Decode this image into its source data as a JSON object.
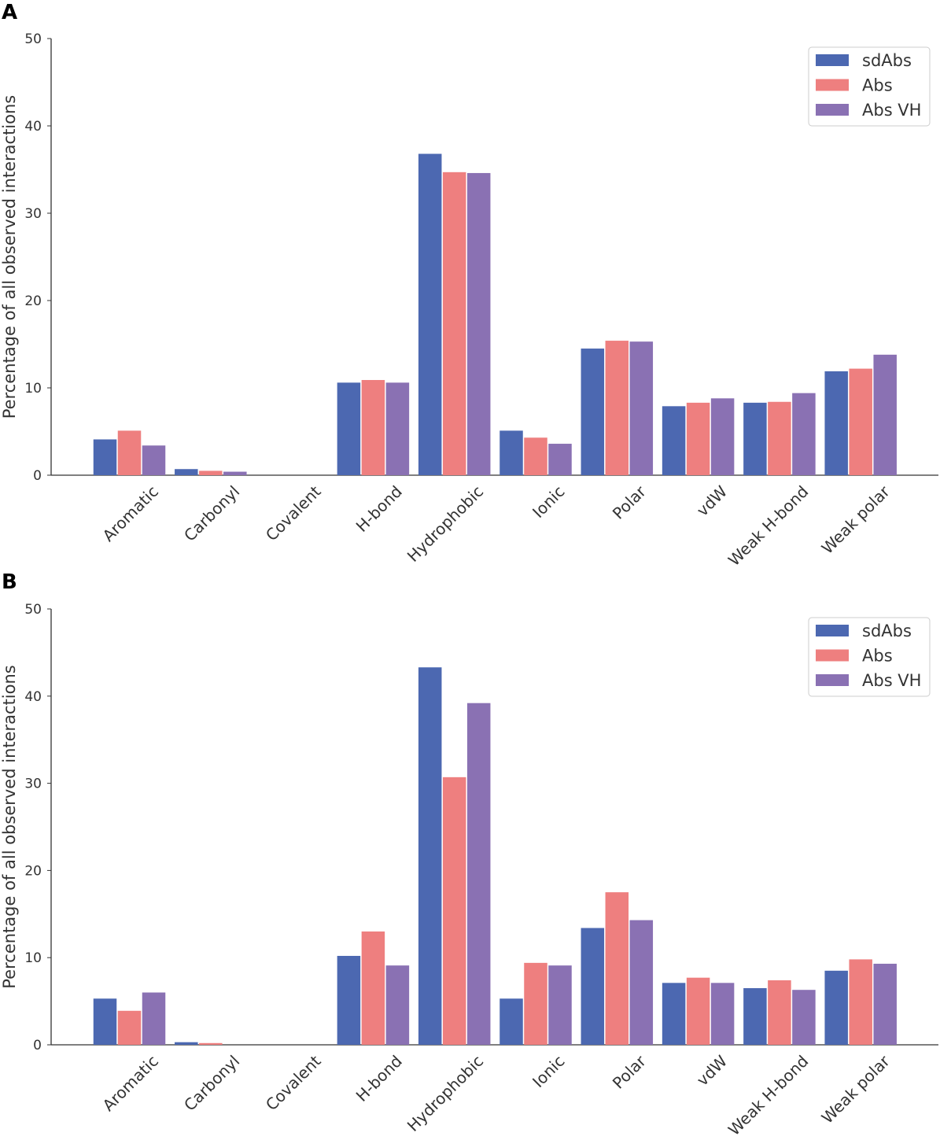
{
  "chart_data": [
    {
      "panel": "A",
      "type": "bar",
      "title": "",
      "xlabel": "",
      "ylabel": "Percentage of all observed interactions",
      "ylim": [
        0,
        50
      ],
      "yticks": [
        0,
        10,
        20,
        30,
        40,
        50
      ],
      "grid": false,
      "legend": "top-right",
      "categories": [
        "Aromatic",
        "Carbonyl",
        "Covalent",
        "H-bond",
        "Hydrophobic",
        "Ionic",
        "Polar",
        "vdW",
        "Weak H-bond",
        "Weak polar"
      ],
      "series": [
        {
          "name": "sdAbs",
          "color": "#4c68b1",
          "values": [
            4.1,
            0.7,
            0.0,
            10.6,
            36.8,
            5.1,
            14.5,
            7.9,
            8.3,
            11.9
          ]
        },
        {
          "name": "Abs",
          "color": "#ee7f7f",
          "values": [
            5.1,
            0.5,
            0.0,
            10.9,
            34.7,
            4.3,
            15.4,
            8.3,
            8.4,
            12.2
          ]
        },
        {
          "name": "Abs VH",
          "color": "#8a71b3",
          "values": [
            3.4,
            0.4,
            0.0,
            10.6,
            34.6,
            3.6,
            15.3,
            8.8,
            9.4,
            13.8
          ]
        }
      ]
    },
    {
      "panel": "B",
      "type": "bar",
      "title": "",
      "xlabel": "",
      "ylabel": "Percentage of all observed interactions",
      "ylim": [
        0,
        50
      ],
      "yticks": [
        0,
        10,
        20,
        30,
        40,
        50
      ],
      "grid": false,
      "legend": "top-right",
      "categories": [
        "Aromatic",
        "Carbonyl",
        "Covalent",
        "H-bond",
        "Hydrophobic",
        "Ionic",
        "Polar",
        "vdW",
        "Weak H-bond",
        "Weak polar"
      ],
      "series": [
        {
          "name": "sdAbs",
          "color": "#4c68b1",
          "values": [
            5.3,
            0.3,
            0.0,
            10.2,
            43.3,
            5.3,
            13.4,
            7.1,
            6.5,
            8.5
          ]
        },
        {
          "name": "Abs",
          "color": "#ee7f7f",
          "values": [
            3.9,
            0.2,
            0.0,
            13.0,
            30.7,
            9.4,
            17.5,
            7.7,
            7.4,
            9.8
          ]
        },
        {
          "name": "Abs VH",
          "color": "#8a71b3",
          "values": [
            6.0,
            0.0,
            0.0,
            9.1,
            39.2,
            9.1,
            14.3,
            7.1,
            6.3,
            9.3
          ]
        }
      ]
    }
  ]
}
